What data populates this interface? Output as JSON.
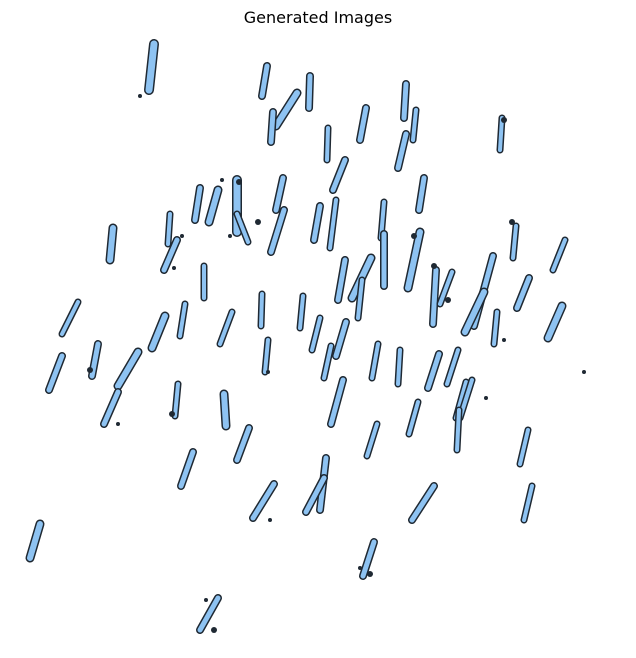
{
  "figure": {
    "title": "Generated Images",
    "subject": "scattered-light-blue-strokes",
    "colors": {
      "fill": "#8ec3f2",
      "outline": "#1f2933",
      "background": "#ffffff"
    }
  }
}
